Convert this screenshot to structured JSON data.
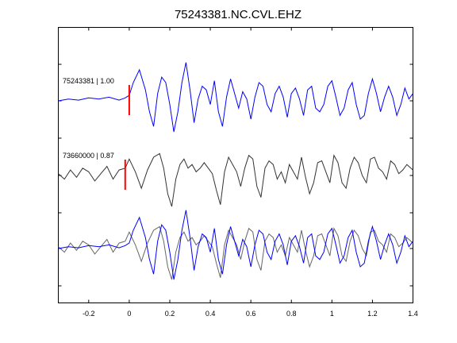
{
  "chart_data": {
    "type": "line",
    "title": "75243381.NC.CVL.EHZ",
    "xlabel": "",
    "ylabel": "",
    "xlim": [
      -0.35,
      1.4
    ],
    "x_ticks": [
      "-0.2",
      "0",
      "0.2",
      "0.4",
      "0.6",
      "0.8",
      "1",
      "1.2",
      "1.4"
    ],
    "x_tick_values": [
      -0.2,
      0,
      0.2,
      0.4,
      0.6,
      0.8,
      1.0,
      1.2,
      1.4
    ],
    "grid": false,
    "legend": "none",
    "panels": [
      {
        "label": "75243381 | 1.00",
        "pick_time": 0.0,
        "traces": [
          {
            "color": "#0000ff",
            "x": [
              -0.35,
              -0.3,
              -0.25,
              -0.2,
              -0.15,
              -0.1,
              -0.05,
              -0.02,
              0,
              0.02,
              0.05,
              0.08,
              0.1,
              0.12,
              0.14,
              0.16,
              0.18,
              0.2,
              0.22,
              0.24,
              0.26,
              0.28,
              0.3,
              0.32,
              0.34,
              0.36,
              0.38,
              0.4,
              0.42,
              0.44,
              0.46,
              0.48,
              0.5,
              0.52,
              0.54,
              0.56,
              0.58,
              0.6,
              0.62,
              0.64,
              0.66,
              0.68,
              0.7,
              0.72,
              0.74,
              0.76,
              0.78,
              0.8,
              0.82,
              0.84,
              0.86,
              0.88,
              0.9,
              0.92,
              0.94,
              0.96,
              0.98,
              1.0,
              1.02,
              1.04,
              1.06,
              1.08,
              1.1,
              1.12,
              1.14,
              1.16,
              1.18,
              1.2,
              1.22,
              1.24,
              1.26,
              1.28,
              1.3,
              1.32,
              1.34,
              1.36,
              1.38,
              1.4
            ],
            "y": [
              0,
              0.05,
              0.02,
              0.08,
              0.05,
              0.1,
              0.02,
              0.08,
              0.15,
              0.5,
              0.85,
              0.3,
              -0.3,
              -0.7,
              0.2,
              0.65,
              0.5,
              -0.1,
              -0.85,
              -0.3,
              0.5,
              1.05,
              0.3,
              -0.6,
              0.05,
              0.4,
              0.3,
              -0.1,
              0.55,
              -0.3,
              -0.7,
              0.1,
              0.6,
              0.2,
              -0.2,
              0.25,
              0.05,
              -0.5,
              0.1,
              0.5,
              0.4,
              -0.1,
              -0.3,
              0.2,
              0.4,
              0.1,
              -0.45,
              0.2,
              0.35,
              0.05,
              -0.4,
              0.3,
              0.4,
              -0.2,
              -0.3,
              -0.1,
              0.4,
              0.55,
              0.1,
              -0.4,
              -0.2,
              0.3,
              0.5,
              -0.1,
              -0.5,
              -0.4,
              0.2,
              0.6,
              0.2,
              -0.3,
              0.1,
              0.4,
              0.1,
              -0.4,
              -0.1,
              0.35,
              0.05,
              0.2
            ]
          }
        ]
      },
      {
        "label": "73660000 | 0.87",
        "pick_time": -0.02,
        "traces": [
          {
            "color": "#333333",
            "x": [
              -0.35,
              -0.32,
              -0.29,
              -0.26,
              -0.23,
              -0.2,
              -0.17,
              -0.14,
              -0.11,
              -0.08,
              -0.05,
              -0.02,
              0,
              0.03,
              0.06,
              0.09,
              0.12,
              0.15,
              0.17,
              0.19,
              0.21,
              0.23,
              0.25,
              0.27,
              0.29,
              0.31,
              0.33,
              0.35,
              0.37,
              0.39,
              0.41,
              0.43,
              0.45,
              0.47,
              0.49,
              0.51,
              0.53,
              0.55,
              0.57,
              0.59,
              0.61,
              0.63,
              0.65,
              0.67,
              0.69,
              0.71,
              0.73,
              0.75,
              0.77,
              0.79,
              0.81,
              0.83,
              0.85,
              0.87,
              0.89,
              0.91,
              0.93,
              0.95,
              0.97,
              0.99,
              1.01,
              1.03,
              1.05,
              1.07,
              1.09,
              1.11,
              1.13,
              1.15,
              1.17,
              1.19,
              1.21,
              1.23,
              1.25,
              1.27,
              1.29,
              1.31,
              1.33,
              1.35,
              1.37,
              1.4
            ],
            "y": [
              0.05,
              -0.1,
              0.15,
              -0.05,
              0.2,
              0.1,
              -0.15,
              0.05,
              0.25,
              -0.1,
              0.15,
              0.2,
              0.45,
              0.1,
              -0.35,
              0.15,
              0.5,
              0.6,
              0.2,
              -0.5,
              -0.85,
              -0.1,
              0.3,
              0.45,
              0.2,
              0.3,
              0.1,
              0.2,
              0.35,
              0.2,
              0.05,
              -0.4,
              -0.8,
              0.1,
              0.5,
              0.3,
              0.1,
              -0.3,
              0.2,
              0.55,
              0.45,
              -0.3,
              -0.6,
              0.2,
              0.4,
              0.3,
              -0.1,
              0.1,
              -0.2,
              0.3,
              0.1,
              -0.1,
              0.5,
              -0.05,
              -0.5,
              -0.2,
              0.35,
              0.4,
              0.1,
              -0.2,
              0.55,
              0.35,
              -0.2,
              -0.35,
              0.2,
              0.5,
              0.35,
              0,
              -0.2,
              0.45,
              0.5,
              0.2,
              0.1,
              -0.1,
              0.4,
              0.3,
              0.05,
              0.15,
              0.3,
              0.15
            ]
          }
        ]
      },
      {
        "label": "",
        "pick_time": null,
        "traces": [
          {
            "color": "#666666",
            "x": [
              -0.35,
              -0.32,
              -0.29,
              -0.26,
              -0.23,
              -0.2,
              -0.17,
              -0.14,
              -0.11,
              -0.08,
              -0.05,
              -0.02,
              0,
              0.03,
              0.06,
              0.09,
              0.12,
              0.15,
              0.17,
              0.19,
              0.21,
              0.23,
              0.25,
              0.27,
              0.29,
              0.31,
              0.33,
              0.35,
              0.37,
              0.39,
              0.41,
              0.43,
              0.45,
              0.47,
              0.49,
              0.51,
              0.53,
              0.55,
              0.57,
              0.59,
              0.61,
              0.63,
              0.65,
              0.67,
              0.69,
              0.71,
              0.73,
              0.75,
              0.77,
              0.79,
              0.81,
              0.83,
              0.85,
              0.87,
              0.89,
              0.91,
              0.93,
              0.95,
              0.97,
              0.99,
              1.01,
              1.03,
              1.05,
              1.07,
              1.09,
              1.11,
              1.13,
              1.15,
              1.17,
              1.19,
              1.21,
              1.23,
              1.25,
              1.27,
              1.29,
              1.31,
              1.33,
              1.35,
              1.37,
              1.4
            ],
            "y": [
              0.05,
              -0.1,
              0.15,
              -0.05,
              0.2,
              0.1,
              -0.15,
              0.05,
              0.25,
              -0.1,
              0.15,
              0.2,
              0.45,
              0.1,
              -0.35,
              0.15,
              0.5,
              0.6,
              0.2,
              -0.5,
              -0.85,
              -0.1,
              0.3,
              0.45,
              0.2,
              0.3,
              0.1,
              0.2,
              0.35,
              0.2,
              0.05,
              -0.4,
              -0.8,
              0.1,
              0.5,
              0.3,
              0.1,
              -0.3,
              0.2,
              0.55,
              0.45,
              -0.3,
              -0.6,
              0.2,
              0.4,
              0.3,
              -0.1,
              0.1,
              -0.2,
              0.3,
              0.1,
              -0.1,
              0.5,
              -0.05,
              -0.5,
              -0.2,
              0.35,
              0.4,
              0.1,
              -0.2,
              0.55,
              0.35,
              -0.2,
              -0.35,
              0.2,
              0.5,
              0.35,
              0,
              -0.2,
              0.45,
              0.5,
              0.2,
              0.1,
              -0.1,
              0.4,
              0.3,
              0.05,
              0.15,
              0.3,
              0.15
            ]
          },
          {
            "color": "#0000ff",
            "x": [
              -0.35,
              -0.3,
              -0.25,
              -0.2,
              -0.15,
              -0.1,
              -0.05,
              -0.02,
              0,
              0.02,
              0.05,
              0.08,
              0.1,
              0.12,
              0.14,
              0.16,
              0.18,
              0.2,
              0.22,
              0.24,
              0.26,
              0.28,
              0.3,
              0.32,
              0.34,
              0.36,
              0.38,
              0.4,
              0.42,
              0.44,
              0.46,
              0.48,
              0.5,
              0.52,
              0.54,
              0.56,
              0.58,
              0.6,
              0.62,
              0.64,
              0.66,
              0.68,
              0.7,
              0.72,
              0.74,
              0.76,
              0.78,
              0.8,
              0.82,
              0.84,
              0.86,
              0.88,
              0.9,
              0.92,
              0.94,
              0.96,
              0.98,
              1.0,
              1.02,
              1.04,
              1.06,
              1.08,
              1.1,
              1.12,
              1.14,
              1.16,
              1.18,
              1.2,
              1.22,
              1.24,
              1.26,
              1.28,
              1.3,
              1.32,
              1.34,
              1.36,
              1.38,
              1.4
            ],
            "y": [
              0,
              0.05,
              0.02,
              0.08,
              0.05,
              0.1,
              0.02,
              0.08,
              0.15,
              0.5,
              0.85,
              0.3,
              -0.3,
              -0.7,
              0.2,
              0.65,
              0.5,
              -0.1,
              -0.85,
              -0.3,
              0.5,
              1.05,
              0.3,
              -0.6,
              0.05,
              0.4,
              0.3,
              -0.1,
              0.55,
              -0.3,
              -0.7,
              0.1,
              0.6,
              0.2,
              -0.2,
              0.25,
              0.05,
              -0.5,
              0.1,
              0.5,
              0.4,
              -0.1,
              -0.3,
              0.2,
              0.4,
              0.1,
              -0.45,
              0.2,
              0.35,
              0.05,
              -0.4,
              0.3,
              0.4,
              -0.2,
              -0.3,
              -0.1,
              0.4,
              0.55,
              0.1,
              -0.4,
              -0.2,
              0.3,
              0.5,
              -0.1,
              -0.5,
              -0.4,
              0.2,
              0.6,
              0.2,
              -0.3,
              0.1,
              0.4,
              0.1,
              -0.4,
              -0.1,
              0.35,
              0.05,
              0.2
            ]
          }
        ]
      }
    ],
    "pick_color": "#ff0000"
  }
}
